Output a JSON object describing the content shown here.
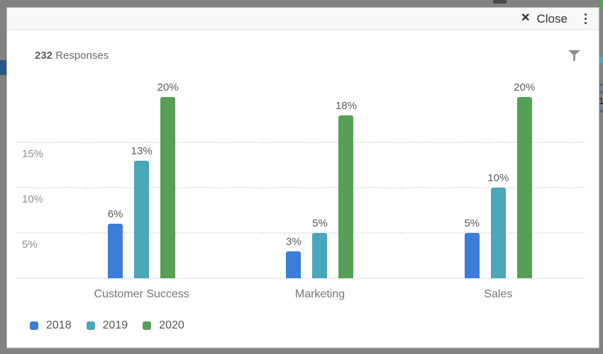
{
  "backdrop_color": "#828282",
  "background_peek": {
    "digit": "1"
  },
  "modal": {
    "header": {
      "close_icon": "✕",
      "close_label": "Close"
    },
    "toolbar": {
      "responses_count": "232",
      "responses_label": "Responses"
    }
  },
  "chart_data": {
    "type": "bar",
    "title": "232 Responses",
    "categories": [
      "Customer Success",
      "Marketing",
      "Sales"
    ],
    "series": [
      {
        "name": "2018",
        "color": "#3b7dd8",
        "values": [
          6,
          3,
          5
        ],
        "labels": [
          "6%",
          "3%",
          "5%"
        ]
      },
      {
        "name": "2019",
        "color": "#4aa6b9",
        "values": [
          13,
          5,
          10
        ],
        "labels": [
          "13%",
          "5%",
          "10%"
        ]
      },
      {
        "name": "2020",
        "color": "#55a054",
        "values": [
          20,
          18,
          20
        ],
        "labels": [
          "20%",
          "18%",
          "20%"
        ]
      }
    ],
    "y_ticks": [
      {
        "value": 5,
        "label": "5%"
      },
      {
        "value": 10,
        "label": "10%"
      },
      {
        "value": 15,
        "label": "15%"
      }
    ],
    "ylim": [
      0,
      21.5
    ],
    "unit": "%",
    "grid": "horizontal-dotted",
    "legend_position": "bottom-left"
  }
}
